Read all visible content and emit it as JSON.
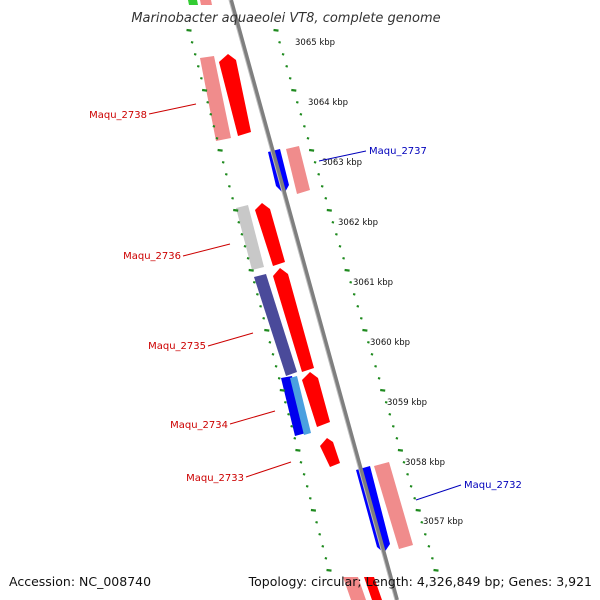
{
  "title": "Marinobacter aquaeolei VT8, complete genome",
  "footer": {
    "accession": "Accession: NC_008740",
    "summary": "Topology: circular; Length: 4,326,849 bp; Genes: 3,921"
  },
  "colors": {
    "backbone": "#7f7f7f",
    "tick_major": "#1f8a1f",
    "tick_minor": "#2f9a2f",
    "forward_label": "#cc0000",
    "reverse_label": "#0000bb"
  },
  "ticks": [
    {
      "label": "3065 kbp"
    },
    {
      "label": "3064 kbp"
    },
    {
      "label": "3063 kbp"
    },
    {
      "label": "3062 kbp"
    },
    {
      "label": "3061 kbp"
    },
    {
      "label": "3060 kbp"
    },
    {
      "label": "3059 kbp"
    },
    {
      "label": "3058 kbp"
    },
    {
      "label": "3057 kbp"
    }
  ],
  "genes": [
    {
      "name": "Maqu_2738",
      "strand": "forward",
      "color": "#ff0000"
    },
    {
      "name": "Maqu_2737",
      "strand": "reverse",
      "color": "#0000ff"
    },
    {
      "name": "Maqu_2736",
      "strand": "forward",
      "color": "#ff0000"
    },
    {
      "name": "Maqu_2735",
      "strand": "forward",
      "color": "#ff0000"
    },
    {
      "name": "Maqu_2734",
      "strand": "forward",
      "color": "#ff0000"
    },
    {
      "name": "Maqu_2733",
      "strand": "forward",
      "color": "#ff0000"
    },
    {
      "name": "Maqu_2732",
      "strand": "reverse",
      "color": "#0000ff"
    }
  ]
}
